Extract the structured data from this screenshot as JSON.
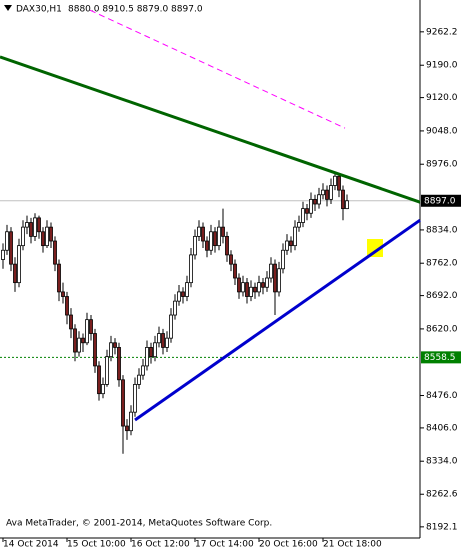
{
  "chart_data": {
    "type": "candlestick",
    "symbol": "DAX30,H1",
    "header_values": "8880.0 8910.5 8879.0 8897.0",
    "footer": "Ava MetaTrader, © 2001-2014, MetaQuotes Software Corp.",
    "bull_color": "#ffffff",
    "bear_color": "#7a1f1f",
    "outline_color": "#000000",
    "xlim": [
      -0.75,
      104.25
    ],
    "ylim": [
      8168,
      9331
    ],
    "xticks": [
      {
        "value": 0,
        "label": "14 Oct 2014"
      },
      {
        "value": 16,
        "label": "15 Oct 10:00"
      },
      {
        "value": 32,
        "label": "16 Oct 12:00"
      },
      {
        "value": 48,
        "label": "17 Oct 14:00"
      },
      {
        "value": 64,
        "label": "20 Oct 16:00"
      },
      {
        "value": 80,
        "label": "21 Oct 18:00"
      }
    ],
    "yticks": [
      9262.2,
      {
        "value": 9190,
        "label": "9190.0"
      },
      {
        "value": 9120,
        "label": "9120.0"
      },
      {
        "value": 9048,
        "label": "9048.0"
      },
      {
        "value": 8976,
        "label": "8976.0"
      },
      {
        "value": 8834,
        "label": "8834.0"
      },
      {
        "value": 8762,
        "label": "8762.0"
      },
      {
        "value": 8692,
        "label": "8692.0"
      },
      {
        "value": 8620,
        "label": "8620.0"
      },
      {
        "value": 8476,
        "label": "8476.0"
      },
      {
        "value": 8406,
        "label": "8406.0"
      },
      {
        "value": 8334,
        "label": "8334.0"
      },
      8262.6,
      8192.1
    ],
    "ohlc": [
      [
        8770,
        8805,
        8750,
        8790
      ],
      [
        8790,
        8845,
        8780,
        8830
      ],
      [
        8830,
        8840,
        8745,
        8760
      ],
      [
        8760,
        8775,
        8700,
        8720
      ],
      [
        8720,
        8815,
        8710,
        8800
      ],
      [
        8800,
        8855,
        8790,
        8840
      ],
      [
        8840,
        8865,
        8825,
        8850
      ],
      [
        8850,
        8860,
        8805,
        8820
      ],
      [
        8820,
        8870,
        8810,
        8860
      ],
      [
        8860,
        8865,
        8815,
        8830
      ],
      [
        8830,
        8840,
        8785,
        8800
      ],
      [
        8800,
        8855,
        8795,
        8840
      ],
      [
        8840,
        8850,
        8795,
        8810
      ],
      [
        8810,
        8820,
        8745,
        8760
      ],
      [
        8760,
        8770,
        8680,
        8700
      ],
      [
        8700,
        8720,
        8675,
        8690
      ],
      [
        8690,
        8700,
        8630,
        8650
      ],
      [
        8650,
        8665,
        8600,
        8620
      ],
      [
        8620,
        8630,
        8550,
        8570
      ],
      [
        8570,
        8615,
        8560,
        8600
      ],
      [
        8600,
        8610,
        8570,
        8590
      ],
      [
        8590,
        8655,
        8585,
        8640
      ],
      [
        8640,
        8650,
        8595,
        8610
      ],
      [
        8610,
        8620,
        8525,
        8540
      ],
      [
        8540,
        8550,
        8465,
        8480
      ],
      [
        8480,
        8515,
        8470,
        8500
      ],
      [
        8500,
        8575,
        8495,
        8560
      ],
      [
        8560,
        8605,
        8550,
        8590
      ],
      [
        8590,
        8600,
        8565,
        8580
      ],
      [
        8580,
        8590,
        8495,
        8510
      ],
      [
        8510,
        8520,
        8350,
        8410
      ],
      [
        8410,
        8425,
        8380,
        8400
      ],
      [
        8400,
        8455,
        8390,
        8440
      ],
      [
        8440,
        8515,
        8430,
        8500
      ],
      [
        8500,
        8535,
        8490,
        8520
      ],
      [
        8520,
        8555,
        8510,
        8540
      ],
      [
        8540,
        8595,
        8530,
        8580
      ],
      [
        8580,
        8590,
        8545,
        8560
      ],
      [
        8560,
        8605,
        8550,
        8590
      ],
      [
        8590,
        8625,
        8580,
        8610
      ],
      [
        8610,
        8620,
        8565,
        8580
      ],
      [
        8580,
        8615,
        8570,
        8600
      ],
      [
        8600,
        8665,
        8590,
        8650
      ],
      [
        8650,
        8695,
        8640,
        8680
      ],
      [
        8680,
        8715,
        8670,
        8700
      ],
      [
        8700,
        8710,
        8675,
        8690
      ],
      [
        8690,
        8735,
        8680,
        8720
      ],
      [
        8720,
        8795,
        8710,
        8780
      ],
      [
        8780,
        8835,
        8770,
        8820
      ],
      [
        8820,
        8855,
        8810,
        8840
      ],
      [
        8840,
        8850,
        8795,
        8810
      ],
      [
        8810,
        8820,
        8775,
        8790
      ],
      [
        8790,
        8845,
        8780,
        8830
      ],
      [
        8830,
        8840,
        8785,
        8800
      ],
      [
        8800,
        8855,
        8790,
        8840
      ],
      [
        8840,
        8880,
        8805,
        8820
      ],
      [
        8820,
        8830,
        8765,
        8780
      ],
      [
        8780,
        8790,
        8745,
        8760
      ],
      [
        8760,
        8770,
        8715,
        8730
      ],
      [
        8730,
        8740,
        8685,
        8700
      ],
      [
        8700,
        8735,
        8690,
        8720
      ],
      [
        8720,
        8730,
        8675,
        8690
      ],
      [
        8690,
        8725,
        8680,
        8710
      ],
      [
        8710,
        8720,
        8685,
        8700
      ],
      [
        8700,
        8735,
        8690,
        8720
      ],
      [
        8720,
        8730,
        8695,
        8710
      ],
      [
        8710,
        8745,
        8700,
        8730
      ],
      [
        8730,
        8775,
        8720,
        8760
      ],
      [
        8760,
        8770,
        8650,
        8700
      ],
      [
        8700,
        8765,
        8690,
        8750
      ],
      [
        8750,
        8805,
        8740,
        8790
      ],
      [
        8790,
        8825,
        8780,
        8810
      ],
      [
        8810,
        8820,
        8785,
        8800
      ],
      [
        8800,
        8855,
        8790,
        8840
      ],
      [
        8840,
        8865,
        8830,
        8850
      ],
      [
        8850,
        8895,
        8840,
        8880
      ],
      [
        8880,
        8890,
        8855,
        8870
      ],
      [
        8870,
        8915,
        8860,
        8900
      ],
      [
        8900,
        8910,
        8875,
        8890
      ],
      [
        8890,
        8925,
        8880,
        8910
      ],
      [
        8910,
        8935,
        8900,
        8920
      ],
      [
        8920,
        8930,
        8885,
        8900
      ],
      [
        8900,
        8945,
        8890,
        8930
      ],
      [
        8930,
        8955,
        8920,
        8950
      ],
      [
        8950,
        8955,
        8905,
        8920
      ],
      [
        8920,
        8930,
        8855,
        8880
      ],
      [
        8880,
        8910.5,
        8879,
        8897
      ]
    ],
    "lines": [
      {
        "color": "#006400",
        "width": 3,
        "x": [
          -0.75,
          104.25
        ],
        "values": [
          9208,
          8894
        ]
      },
      {
        "color": "#0000cd",
        "width": 3,
        "x": [
          33,
          104.25
        ],
        "values": [
          8423,
          8855
        ]
      },
      {
        "color": "#ff00ff",
        "width": 1,
        "dashed": true,
        "x": [
          21.75,
          85.5
        ],
        "values": [
          9309,
          9054
        ]
      }
    ],
    "price_lines": [
      {
        "value": 8897.0,
        "label": "8897.0",
        "color": "#c0c0c0",
        "box": "#000000"
      },
      {
        "value": 8558.5,
        "label": "8558.5",
        "color": "#008000",
        "box": "#008000",
        "dashed": true
      }
    ]
  }
}
